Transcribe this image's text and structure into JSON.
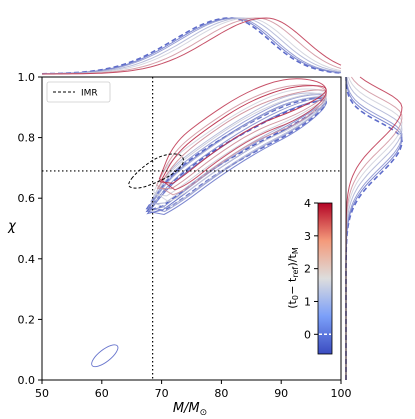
{
  "chart_data": {
    "type": "corner",
    "xlabel": "M/M⊙",
    "ylabel": "χ",
    "xlim": [
      50,
      100
    ],
    "ylim": [
      0.0,
      1.0
    ],
    "xticks": [
      "50",
      "60",
      "70",
      "80",
      "90",
      "100"
    ],
    "yticks": [
      "0.0",
      "0.2",
      "0.4",
      "0.6",
      "0.8",
      "1.0"
    ],
    "grid": false,
    "legend": {
      "placement": "top-left",
      "entries": [
        {
          "label": "IMR",
          "style": "dashed",
          "color": "#000000"
        }
      ]
    },
    "reference_lines": {
      "mass": 68.5,
      "spin": 0.69
    },
    "colorbar": {
      "label": "(t₀ − t_ref)/t_M",
      "range": [
        -0.6,
        4.0
      ],
      "ticks": [
        "0",
        "1",
        "2",
        "3",
        "4"
      ],
      "colormap": "coolwarm",
      "colors": {
        "low": "#3b4cc0",
        "mid": "#dddddd",
        "high": "#b40426"
      },
      "reference_tick": 0
    },
    "imr_contour": {
      "center": [
        68.2,
        0.69
      ],
      "extent_x": [
        64.0,
        74.0
      ],
      "extent_y": [
        0.63,
        0.75
      ]
    },
    "series": [
      {
        "t": -0.5,
        "ridge": [
          [
            67.8,
            0.55
          ],
          [
            72,
            0.63
          ],
          [
            78,
            0.72
          ],
          [
            85,
            0.8
          ],
          [
            92,
            0.87
          ],
          [
            97.5,
            0.92
          ]
        ],
        "width": 0.045,
        "mass_peak": 81.5,
        "spin_peak": 0.79,
        "dashed": true,
        "lower_island": true
      },
      {
        "t": 0.0,
        "ridge": [
          [
            67.8,
            0.54
          ],
          [
            72,
            0.62
          ],
          [
            78,
            0.71
          ],
          [
            85,
            0.8
          ],
          [
            92,
            0.87
          ],
          [
            97.5,
            0.92
          ]
        ],
        "width": 0.05,
        "mass_peak": 82.0,
        "spin_peak": 0.8,
        "dashed": false,
        "lower_island": false
      },
      {
        "t": 0.5,
        "ridge": [
          [
            68,
            0.55
          ],
          [
            72,
            0.63
          ],
          [
            78,
            0.72
          ],
          [
            85,
            0.81
          ],
          [
            92,
            0.88
          ],
          [
            97.5,
            0.93
          ]
        ],
        "width": 0.05,
        "mass_peak": 82.5,
        "spin_peak": 0.81,
        "dashed": false,
        "lower_island": false
      },
      {
        "t": 1.0,
        "ridge": [
          [
            68.5,
            0.57
          ],
          [
            72,
            0.64
          ],
          [
            78,
            0.73
          ],
          [
            85,
            0.82
          ],
          [
            92,
            0.89
          ],
          [
            97.5,
            0.93
          ]
        ],
        "width": 0.055,
        "mass_peak": 83.5,
        "spin_peak": 0.83,
        "dashed": false,
        "lower_island": false
      },
      {
        "t": 1.5,
        "ridge": [
          [
            69,
            0.6
          ],
          [
            72,
            0.66
          ],
          [
            78,
            0.75
          ],
          [
            85,
            0.84
          ],
          [
            92,
            0.9
          ],
          [
            97.5,
            0.94
          ]
        ],
        "width": 0.06,
        "mass_peak": 84.5,
        "spin_peak": 0.85,
        "dashed": false,
        "lower_island": false
      },
      {
        "t": 2.5,
        "ridge": [
          [
            69.5,
            0.62
          ],
          [
            73,
            0.69
          ],
          [
            78,
            0.77
          ],
          [
            85,
            0.86
          ],
          [
            92,
            0.91
          ],
          [
            97.5,
            0.95
          ]
        ],
        "width": 0.065,
        "mass_peak": 86.0,
        "spin_peak": 0.87,
        "dashed": false,
        "lower_island": false
      },
      {
        "t": 3.5,
        "ridge": [
          [
            70,
            0.64
          ],
          [
            73,
            0.71
          ],
          [
            78,
            0.79
          ],
          [
            85,
            0.88
          ],
          [
            92,
            0.93
          ],
          [
            97.5,
            0.96
          ]
        ],
        "width": 0.07,
        "mass_peak": 87.5,
        "spin_peak": 0.9,
        "dashed": false,
        "lower_island": false
      }
    ]
  }
}
